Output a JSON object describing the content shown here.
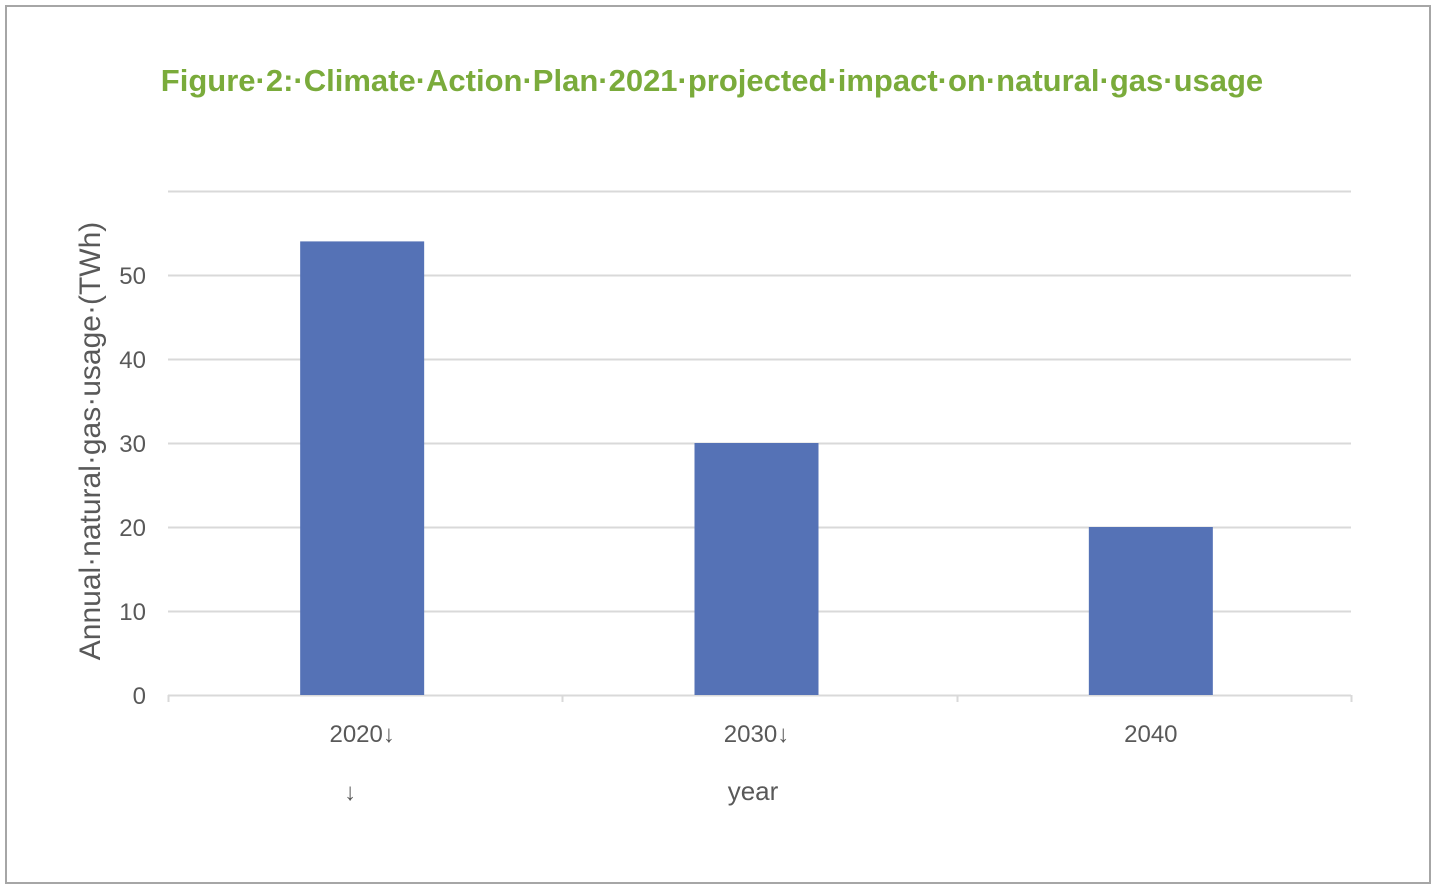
{
  "chart_data": {
    "type": "bar",
    "title": "Figure·2:·Climate·Action·Plan·2021·projected·impact·on·natural·gas·usage",
    "xlabel": "year",
    "ylabel": "Annual·natural·gas·usage·(TWh)",
    "categories": [
      "2020↓",
      "2030↓",
      "2040"
    ],
    "category_extra_lines": [
      "↓",
      "",
      ""
    ],
    "values": [
      54,
      30,
      20
    ],
    "ylim": [
      0,
      60
    ],
    "yticks": [
      0,
      10,
      20,
      30,
      40,
      50
    ],
    "grid": true,
    "legend": "none",
    "colors": {
      "bar": "#5572b6",
      "grid": "#d9d9d9",
      "title": "#7aab3b",
      "axis_text": "#595959"
    }
  }
}
